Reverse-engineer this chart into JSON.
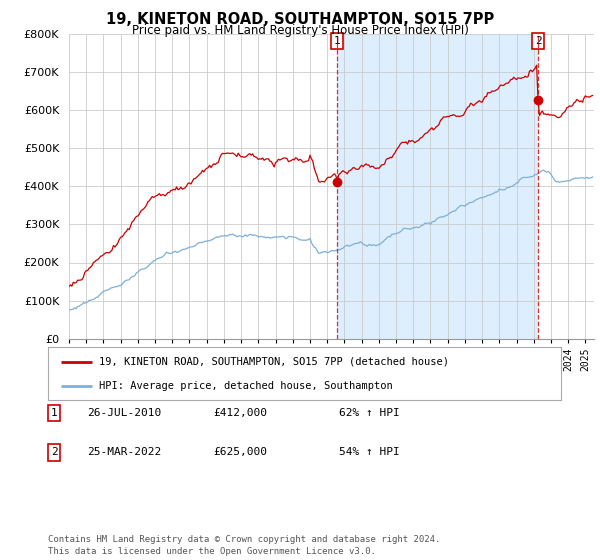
{
  "title": "19, KINETON ROAD, SOUTHAMPTON, SO15 7PP",
  "subtitle": "Price paid vs. HM Land Registry's House Price Index (HPI)",
  "legend_property": "19, KINETON ROAD, SOUTHAMPTON, SO15 7PP (detached house)",
  "legend_hpi": "HPI: Average price, detached house, Southampton",
  "footer": "Contains HM Land Registry data © Crown copyright and database right 2024.\nThis data is licensed under the Open Government Licence v3.0.",
  "sale1_label": "1",
  "sale1_date": "26-JUL-2010",
  "sale1_price": "£412,000",
  "sale1_hpi": "62% ↑ HPI",
  "sale1_year": 2010.57,
  "sale1_value": 412000,
  "sale2_label": "2",
  "sale2_date": "25-MAR-2022",
  "sale2_price": "£625,000",
  "sale2_hpi": "54% ↑ HPI",
  "sale2_year": 2022.25,
  "sale2_value": 625000,
  "property_color": "#cc0000",
  "hpi_color": "#7fb0d8",
  "shade_color": "#ddeeff",
  "background_color": "#ffffff",
  "grid_color": "#cccccc",
  "ylim": [
    0,
    800000
  ],
  "xlim_start": 1995.0,
  "xlim_end": 2025.5
}
